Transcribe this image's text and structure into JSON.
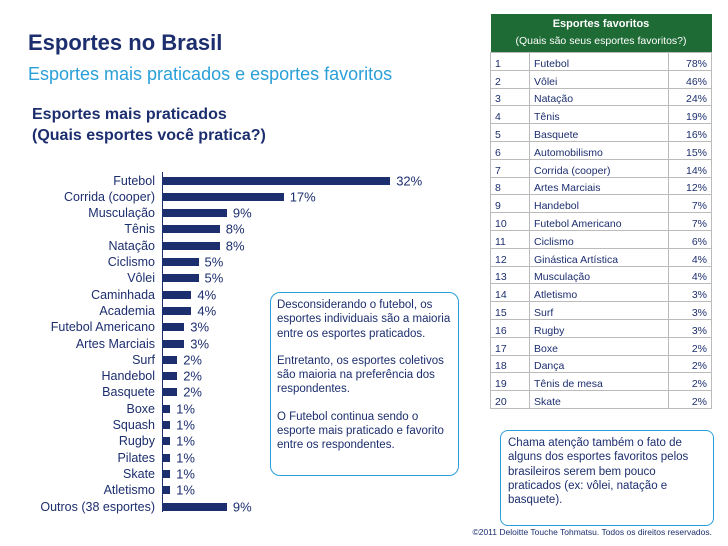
{
  "header": {
    "title": "Esportes no Brasil",
    "subtitle": "Esportes mais praticados e esportes favoritos"
  },
  "chart_data": {
    "type": "hbar",
    "title": "Esportes mais praticados",
    "subtitle": "(Quais esportes você pratica?)",
    "color": "#1c2e6e",
    "categories": [
      "Futebol",
      "Corrida (cooper)",
      "Musculação",
      "Tênis",
      "Natação",
      "Ciclismo",
      "Vôlei",
      "Caminhada",
      "Academia",
      "Futebol Americano",
      "Artes Marciais",
      "Surf",
      "Handebol",
      "Basquete",
      "Boxe",
      "Squash",
      "Rugby",
      "Pilates",
      "Skate",
      "Atletismo",
      "Outros (38 esportes)"
    ],
    "values": [
      32,
      17,
      9,
      8,
      8,
      5,
      5,
      4,
      4,
      3,
      3,
      2,
      2,
      2,
      1,
      1,
      1,
      1,
      1,
      1,
      9
    ],
    "value_labels": [
      "32%",
      "17%",
      "9%",
      "8%",
      "8%",
      "5%",
      "5%",
      "4%",
      "4%",
      "3%",
      "3%",
      "2%",
      "2%",
      "2%",
      "1%",
      "1%",
      "1%",
      "1%",
      "1%",
      "1%",
      "9%"
    ]
  },
  "notes": [
    "Desconsiderando o futebol, os esportes individuais são a maioria entre os esportes praticados.",
    "Entretanto, os esportes coletivos são maioria na preferência dos respondentes.",
    "O Futebol continua sendo o esporte mais praticado e favorito entre os respondentes."
  ],
  "table": {
    "title": "Esportes favoritos",
    "subtitle": "(Quais são seus esportes favoritos?)",
    "rows": [
      [
        "1",
        "Futebol",
        "78%"
      ],
      [
        "2",
        "Vôlei",
        "46%"
      ],
      [
        "3",
        "Natação",
        "24%"
      ],
      [
        "4",
        "Tênis",
        "19%"
      ],
      [
        "5",
        "Basquete",
        "16%"
      ],
      [
        "6",
        "Automobilismo",
        "15%"
      ],
      [
        "7",
        "Corrida (cooper)",
        "14%"
      ],
      [
        "8",
        "Artes Marciais",
        "12%"
      ],
      [
        "9",
        "Handebol",
        "7%"
      ],
      [
        "10",
        "Futebol Americano",
        "7%"
      ],
      [
        "11",
        "Ciclismo",
        "6%"
      ],
      [
        "12",
        "Ginástica Artística",
        "4%"
      ],
      [
        "13",
        "Musculação",
        "4%"
      ],
      [
        "14",
        "Atletismo",
        "3%"
      ],
      [
        "15",
        "Surf",
        "3%"
      ],
      [
        "16",
        "Rugby",
        "3%"
      ],
      [
        "17",
        "Boxe",
        "2%"
      ],
      [
        "18",
        "Dança",
        "2%"
      ],
      [
        "19",
        "Tênis de mesa",
        "2%"
      ],
      [
        "20",
        "Skate",
        "2%"
      ]
    ]
  },
  "callout": "Chama atenção também o fato de alguns dos esportes favoritos pelos brasileiros serem bem pouco praticados (ex: vôlei, natação e basquete).",
  "footer": "©2011 Deloitte Touche Tohmatsu. Todos os direitos reservados."
}
